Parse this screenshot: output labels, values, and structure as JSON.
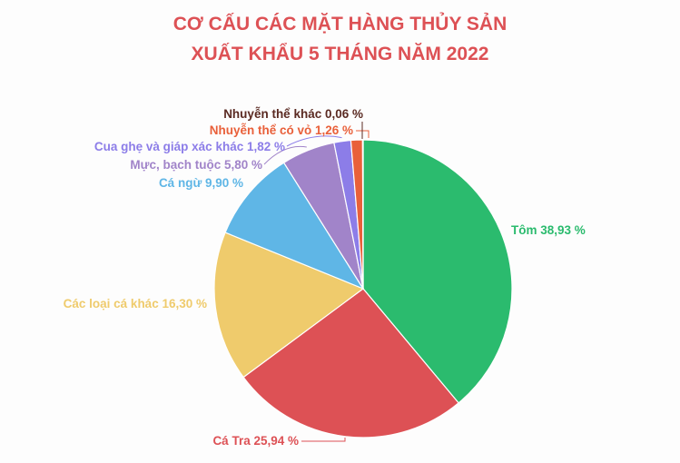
{
  "chart_data": {
    "type": "pie",
    "title_lines": [
      "CƠ CẤU CÁC MẶT HÀNG THỦY SẢN",
      "XUẤT KHẨU 5 THÁNG NĂM 2022"
    ],
    "slices": [
      {
        "label": "Tôm 38,93 %",
        "value": 38.93,
        "color": "#2bbb6e"
      },
      {
        "label": "Cá Tra 25,94 %",
        "value": 25.94,
        "color": "#dd5155"
      },
      {
        "label": "Các loại cá khác 16,30 %",
        "value": 16.3,
        "color": "#efcb6c"
      },
      {
        "label": "Cá ngừ 9,90 %",
        "value": 9.9,
        "color": "#5fb6e6"
      },
      {
        "label": "Mực, bạch tuộc 5,80 %",
        "value": 5.8,
        "color": "#a184c9"
      },
      {
        "label": "Cua ghẹ và giáp xác khác 1,82 %",
        "value": 1.82,
        "color": "#8c7de8"
      },
      {
        "label": "Nhuyễn thể có vỏ 1,26 %",
        "value": 1.26,
        "color": "#e9603a"
      },
      {
        "label": "Nhuyễn thể khác 0,06 %",
        "value": 0.06,
        "color": "#5a2a22"
      }
    ]
  }
}
